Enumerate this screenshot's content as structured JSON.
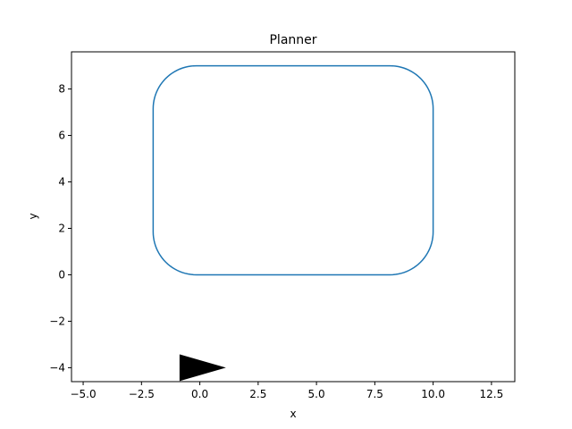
{
  "chart_data": {
    "type": "line",
    "title": "Planner",
    "xlabel": "x",
    "ylabel": "y",
    "xlim": [
      -5.5,
      13.5
    ],
    "ylim": [
      -4.6,
      9.6
    ],
    "xticks": [
      -5.0,
      -2.5,
      0.0,
      2.5,
      5.0,
      7.5,
      10.0,
      12.5
    ],
    "xtick_labels": [
      "−5.0",
      "−2.5",
      "0.0",
      "2.5",
      "5.0",
      "7.5",
      "10.0",
      "12.5"
    ],
    "yticks": [
      -4,
      -2,
      0,
      2,
      4,
      6,
      8
    ],
    "ytick_labels": [
      "−4",
      "−2",
      "0",
      "2",
      "4",
      "6",
      "8"
    ],
    "grid": false,
    "series": [
      {
        "kind": "rounded-rectangle-path",
        "x_range": [
          -2,
          10
        ],
        "y_range": [
          0,
          9
        ],
        "corner_radius": 1.85,
        "color": "#1f77b4"
      }
    ],
    "marker": {
      "kind": "triangle",
      "vertices": [
        [
          -0.85,
          -3.45
        ],
        [
          1.05,
          -4.0
        ],
        [
          -0.85,
          -4.55
        ]
      ],
      "color": "#000000"
    }
  }
}
